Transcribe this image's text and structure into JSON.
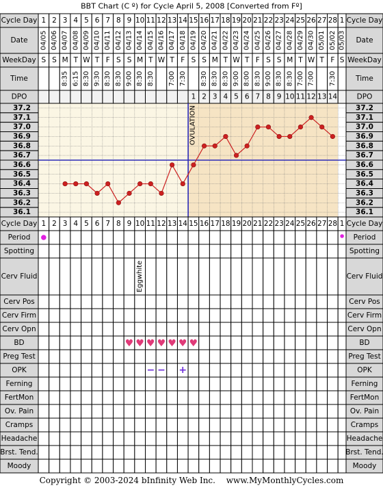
{
  "title": "BBT Chart (C º) for Cycle April 5, 2008  [Converted from Fº]",
  "labels": {
    "cycle_day": "Cycle Day",
    "date": "Date",
    "weekday": "WeekDay",
    "time": "Time",
    "dpo": "DPO",
    "ovulation": "OVULATION"
  },
  "cycle_days": [
    "1",
    "2",
    "3",
    "4",
    "5",
    "6",
    "7",
    "8",
    "9",
    "10",
    "11",
    "12",
    "13",
    "14",
    "15",
    "16",
    "17",
    "18",
    "19",
    "20",
    "21",
    "22",
    "23",
    "24",
    "25",
    "26",
    "27",
    "28"
  ],
  "next_cycle_day": "1",
  "dates": [
    "04/05",
    "04/06",
    "04/07",
    "04/08",
    "04/09",
    "04/10",
    "04/11",
    "04/12",
    "04/13",
    "04/14",
    "04/15",
    "04/16",
    "04/17",
    "04/18",
    "04/19",
    "04/20",
    "04/21",
    "04/22",
    "04/23",
    "04/24",
    "04/25",
    "04/26",
    "04/27",
    "04/28",
    "04/29",
    "04/30",
    "05/01",
    "05/02"
  ],
  "next_date": "05/03",
  "weekdays": [
    "S",
    "S",
    "M",
    "T",
    "W",
    "T",
    "F",
    "S",
    "S",
    "M",
    "T",
    "W",
    "T",
    "F",
    "S",
    "S",
    "M",
    "T",
    "W",
    "T",
    "F",
    "S",
    "S",
    "M",
    "T",
    "W",
    "T",
    "F"
  ],
  "next_weekday": "S",
  "times": [
    "",
    "",
    "8:35",
    "6:15",
    "8:30",
    "9:30",
    "8:30",
    "8:30",
    "9:00",
    "8:30",
    "8:30",
    "",
    "7:00",
    "7:30",
    "",
    "8:30",
    "8:30",
    "8:30",
    "9:00",
    "8:00",
    "8:30",
    "9:00",
    "8:30",
    "8:30",
    "7:00",
    "7:00",
    "",
    "7:30"
  ],
  "dpo": [
    "",
    "",
    "",
    "",
    "",
    "",
    "",
    "",
    "",
    "",
    "",
    "",
    "",
    "",
    "1",
    "2",
    "3",
    "4",
    "5",
    "6",
    "7",
    "8",
    "9",
    "10",
    "11",
    "12",
    "13",
    "14"
  ],
  "chart_data": {
    "type": "line",
    "x_label": "Cycle Day",
    "y_ticks": [
      "37.2",
      "37.1",
      "37.0",
      "36.9",
      "36.8",
      "36.7",
      "36.6",
      "36.5",
      "36.4",
      "36.3",
      "36.2",
      "36.1"
    ],
    "ylim": [
      36.1,
      37.2
    ],
    "coverline": 36.65,
    "ovulation_day": 14,
    "series": [
      {
        "days": [
          3,
          4,
          5,
          6,
          7,
          8,
          9,
          10,
          11,
          12,
          13,
          14,
          15,
          16,
          17,
          18,
          19,
          20,
          21,
          22,
          23,
          24,
          25,
          26,
          27,
          28
        ],
        "values": [
          36.4,
          36.4,
          36.4,
          36.3,
          36.4,
          36.2,
          36.3,
          36.4,
          36.4,
          36.3,
          36.6,
          36.4,
          36.6,
          36.8,
          36.8,
          36.9,
          36.7,
          36.8,
          37.0,
          37.0,
          36.9,
          36.9,
          37.0,
          37.1,
          37.0,
          36.9
        ]
      }
    ]
  },
  "rows": [
    {
      "label": "Cycle Day"
    },
    {
      "label": "Period",
      "period_days": [
        1
      ],
      "next_period": true
    },
    {
      "label": "Spotting"
    },
    {
      "label": "Cerv Fluid",
      "fluid": [
        {
          "day": 10,
          "text": "Eggwhite"
        }
      ]
    },
    {
      "label": "Cerv Pos"
    },
    {
      "label": "Cerv Firm"
    },
    {
      "label": "Cerv Opn"
    },
    {
      "label": "BD",
      "heart_days": [
        9,
        10,
        11,
        12,
        13,
        14,
        15
      ]
    },
    {
      "label": "Preg Test"
    },
    {
      "label": "OPK",
      "opk": [
        {
          "day": 11,
          "mark": "−"
        },
        {
          "day": 12,
          "mark": "−"
        },
        {
          "day": 14,
          "mark": "+"
        }
      ]
    },
    {
      "label": "Ferning"
    },
    {
      "label": "FertMon"
    },
    {
      "label": "Ov. Pain"
    },
    {
      "label": "Cramps"
    },
    {
      "label": "Headache"
    },
    {
      "label": "Brst. Tend."
    },
    {
      "label": "Moody"
    }
  ],
  "colors": {
    "pre_ovulation_bg": "#fbf6e4",
    "post_ovulation_bg": "#f6e4c4",
    "header_bg": "#d8d8d8",
    "line": "#cc2020",
    "coverline": "#2a2ab8",
    "period": "#e020e0",
    "heart": "#e03a78",
    "opk": "#6a2ad8"
  },
  "footer": {
    "copyright": "Copyright © 2003-2024 bInfinity Web Inc.",
    "site": "www.MyMonthlyCycles.com"
  }
}
